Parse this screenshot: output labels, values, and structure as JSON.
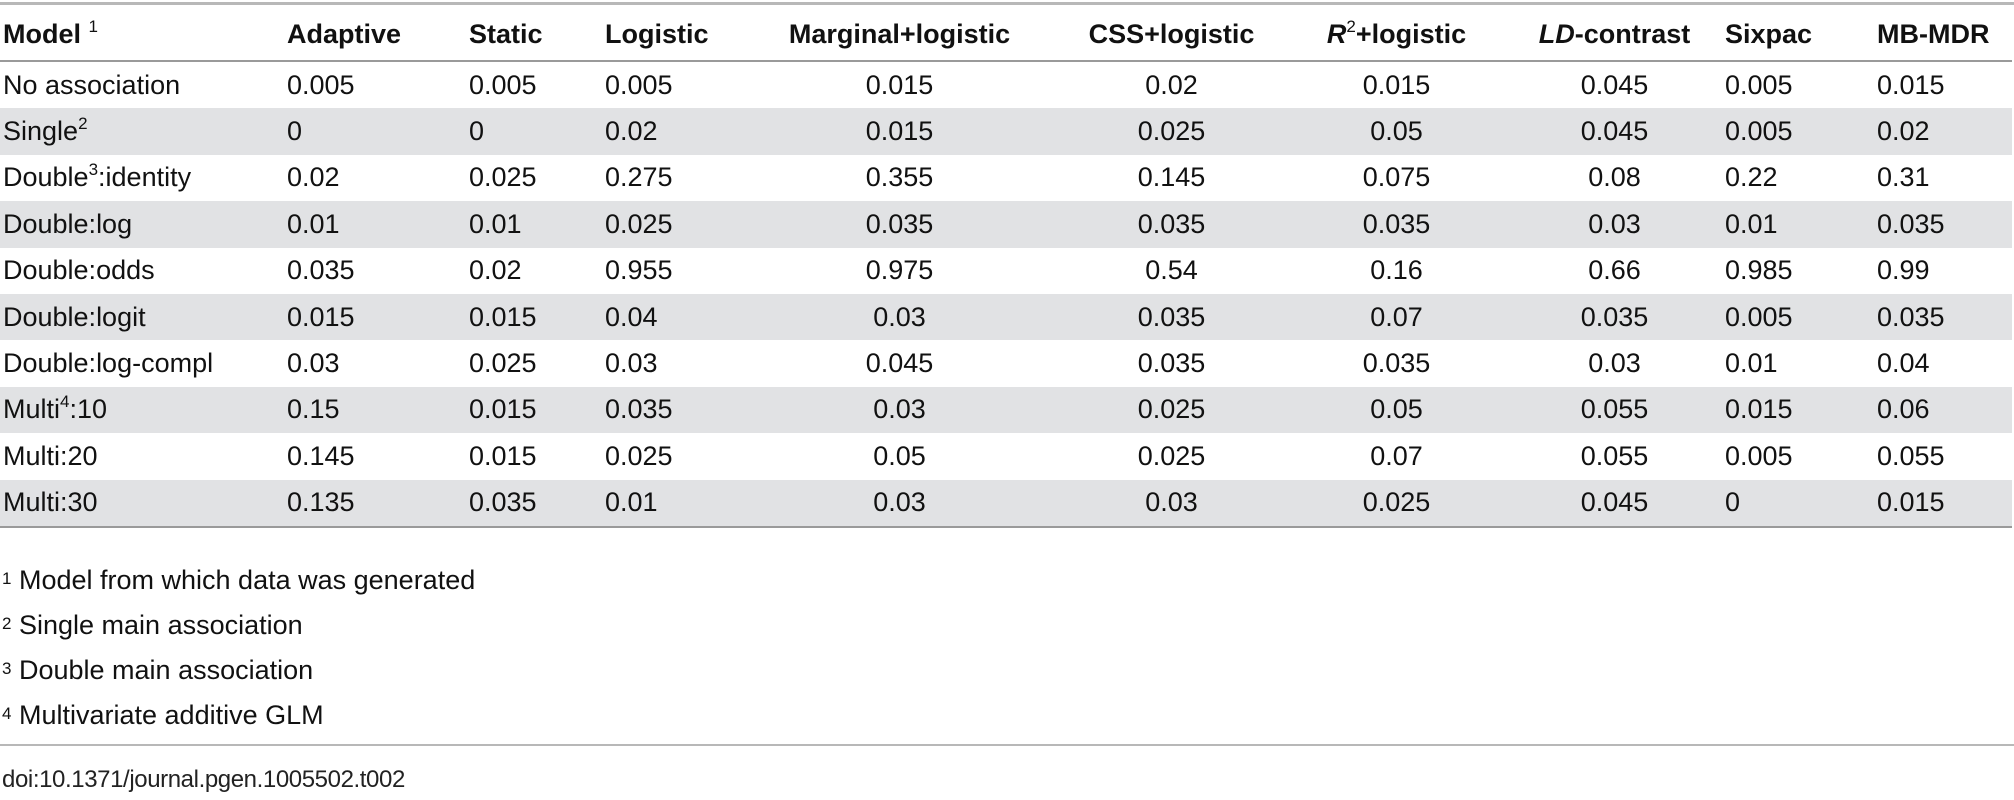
{
  "table": {
    "columns": [
      {
        "key": "model",
        "label": "Model",
        "sup": "1"
      },
      {
        "key": "adaptive",
        "label": "Adaptive"
      },
      {
        "key": "static",
        "label": "Static"
      },
      {
        "key": "logistic",
        "label": "Logistic"
      },
      {
        "key": "marginal_logistic",
        "label": "Marginal+logistic"
      },
      {
        "key": "css_logistic",
        "label": "CSS+logistic"
      },
      {
        "key": "r2_logistic",
        "label_italic": "R",
        "sup": "2",
        "label_rest": "+logistic"
      },
      {
        "key": "ld_contrast",
        "label_italic": "LD",
        "label_rest": "-contrast"
      },
      {
        "key": "sixpac",
        "label": "Sixpac"
      },
      {
        "key": "mb_mdr",
        "label": "MB-MDR"
      }
    ],
    "rows": [
      {
        "model": {
          "pre": "No association",
          "sup": "",
          "post": ""
        },
        "values": [
          "0.005",
          "0.005",
          "0.005",
          "0.015",
          "0.02",
          "0.015",
          "0.045",
          "0.005",
          "0.015"
        ]
      },
      {
        "model": {
          "pre": "Single",
          "sup": "2",
          "post": ""
        },
        "values": [
          "0",
          "0",
          "0.02",
          "0.015",
          "0.025",
          "0.05",
          "0.045",
          "0.005",
          "0.02"
        ]
      },
      {
        "model": {
          "pre": "Double",
          "sup": "3",
          "post": ":identity"
        },
        "values": [
          "0.02",
          "0.025",
          "0.275",
          "0.355",
          "0.145",
          "0.075",
          "0.08",
          "0.22",
          "0.31"
        ]
      },
      {
        "model": {
          "pre": "Double:log",
          "sup": "",
          "post": ""
        },
        "values": [
          "0.01",
          "0.01",
          "0.025",
          "0.035",
          "0.035",
          "0.035",
          "0.03",
          "0.01",
          "0.035"
        ]
      },
      {
        "model": {
          "pre": "Double:odds",
          "sup": "",
          "post": ""
        },
        "values": [
          "0.035",
          "0.02",
          "0.955",
          "0.975",
          "0.54",
          "0.16",
          "0.66",
          "0.985",
          "0.99"
        ]
      },
      {
        "model": {
          "pre": "Double:logit",
          "sup": "",
          "post": ""
        },
        "values": [
          "0.015",
          "0.015",
          "0.04",
          "0.03",
          "0.035",
          "0.07",
          "0.035",
          "0.005",
          "0.035"
        ]
      },
      {
        "model": {
          "pre": "Double:log-compl",
          "sup": "",
          "post": ""
        },
        "values": [
          "0.03",
          "0.025",
          "0.03",
          "0.045",
          "0.035",
          "0.035",
          "0.03",
          "0.01",
          "0.04"
        ]
      },
      {
        "model": {
          "pre": "Multi",
          "sup": "4",
          "post": ":10"
        },
        "values": [
          "0.15",
          "0.015",
          "0.035",
          "0.03",
          "0.025",
          "0.05",
          "0.055",
          "0.015",
          "0.06"
        ]
      },
      {
        "model": {
          "pre": "Multi:20",
          "sup": "",
          "post": ""
        },
        "values": [
          "0.145",
          "0.015",
          "0.025",
          "0.05",
          "0.025",
          "0.07",
          "0.055",
          "0.005",
          "0.055"
        ]
      },
      {
        "model": {
          "pre": "Multi:30",
          "sup": "",
          "post": ""
        },
        "values": [
          "0.135",
          "0.035",
          "0.01",
          "0.03",
          "0.03",
          "0.025",
          "0.045",
          "0",
          "0.015"
        ]
      }
    ]
  },
  "footnotes": [
    {
      "mark": "1",
      "text": "Model from which data was generated"
    },
    {
      "mark": "2",
      "text": "Single main association"
    },
    {
      "mark": "3",
      "text": "Double main association"
    },
    {
      "mark": "4",
      "text": "Multivariate additive GLM"
    }
  ],
  "doi": "doi:10.1371/journal.pgen.1005502.t002",
  "colors": {
    "stripe": "#e1e2e4",
    "rule": "#9a9a9a"
  }
}
